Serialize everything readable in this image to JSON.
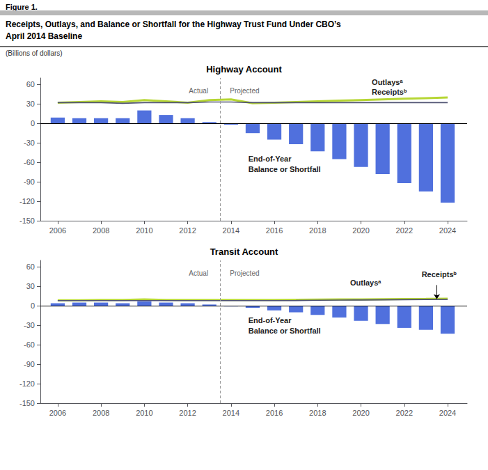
{
  "title": "Receipts, Outlays, and Balance or Shortfall for the Highway Trust Fund Under CBO’s\nApril 2014 Baseline",
  "subtitle": "(Billions of dollars)",
  "annotations": [
    {
      "text": "Figure 1."
    }
  ],
  "chart_data": [
    {
      "type": "bar",
      "title": "Highway Account",
      "x": [
        2006,
        2007,
        2008,
        2009,
        2010,
        2011,
        2012,
        2013,
        2014,
        2015,
        2016,
        2017,
        2018,
        2019,
        2020,
        2021,
        2022,
        2023,
        2024
      ],
      "series": [
        {
          "name": "End-of-Year\nBalance or Shortfall",
          "type": "bar",
          "values": [
            9,
            8,
            8,
            8,
            20,
            13,
            8,
            2,
            -2,
            -15,
            -25,
            -32,
            -43,
            -55,
            -67,
            -78,
            -92,
            -105,
            -122
          ],
          "label_at": [
            2014.8,
            -62
          ]
        },
        {
          "name": "Outlaysᵃ",
          "type": "line",
          "values": [
            32,
            33,
            34,
            33,
            36,
            34,
            32,
            36,
            37,
            31,
            32,
            33,
            34,
            35,
            36,
            37,
            38,
            39,
            40
          ],
          "label_at": [
            2020.5,
            56
          ]
        },
        {
          "name": "Receiptsᵇ",
          "type": "line",
          "values": [
            32,
            32,
            32,
            31,
            32,
            32,
            32,
            33,
            33,
            32,
            32,
            32,
            32,
            32,
            32,
            32,
            32,
            32,
            32
          ],
          "label_at": [
            2020.5,
            40
          ]
        }
      ],
      "xlim": [
        2005.2,
        2024.9
      ],
      "xticks": [
        2006,
        2008,
        2010,
        2012,
        2014,
        2016,
        2018,
        2020,
        2022,
        2024
      ],
      "ylim": [
        -150,
        70
      ],
      "yticks": [
        -150,
        -120,
        -90,
        -60,
        -30,
        0,
        30,
        60
      ],
      "divider": 2013.5,
      "reference_y": 0,
      "annotations": [
        {
          "text": "Actual",
          "x": 2012.95,
          "y": 55.3
        },
        {
          "text": "Projected",
          "x": 2013.95,
          "y": 55.3
        }
      ],
      "grid": false
    },
    {
      "type": "bar",
      "title": "Transit Account",
      "x": [
        2006,
        2007,
        2008,
        2009,
        2010,
        2011,
        2012,
        2013,
        2014,
        2015,
        2016,
        2017,
        2018,
        2019,
        2020,
        2021,
        2022,
        2023,
        2024
      ],
      "series": [
        {
          "name": "End-of-Year\nBalance or Shortfall",
          "type": "bar",
          "values": [
            4,
            5,
            5,
            4,
            7,
            5,
            4,
            2,
            -1,
            -3,
            -7,
            -10,
            -14,
            -18,
            -23,
            -28,
            -34,
            -37,
            -43
          ],
          "label_at": [
            2014.8,
            -30
          ]
        },
        {
          "name": "Outlaysᵃ",
          "type": "line",
          "values": [
            8.5,
            8.5,
            9.0,
            9.0,
            10.0,
            9.0,
            9.0,
            9.0,
            9.0,
            9.0,
            9.2,
            9.4,
            9.6,
            9.8,
            10.0,
            10.2,
            10.4,
            10.6,
            11.0
          ],
          "label_at": [
            2019.5,
            28
          ]
        },
        {
          "name": "Receiptsᵇ",
          "type": "line",
          "values": [
            8.0,
            8.0,
            8.0,
            8.0,
            8.0,
            8.0,
            8.0,
            8.0,
            8.0,
            8.0,
            8.0,
            8.2,
            8.5,
            8.8,
            9.0,
            9.2,
            9.5,
            9.8,
            10.0
          ],
          "label_at": [
            2022.8,
            40
          ],
          "arrow": {
            "from": [
              2023.5,
              32
            ],
            "to": [
              2023.5,
              10.5
            ]
          }
        }
      ],
      "xlim": [
        2005.2,
        2024.9
      ],
      "xticks": [
        2006,
        2008,
        2010,
        2012,
        2014,
        2016,
        2018,
        2020,
        2022,
        2024
      ],
      "ylim": [
        -150,
        70
      ],
      "yticks": [
        -150,
        -120,
        -90,
        -60,
        -30,
        0,
        30,
        60
      ],
      "divider": 2013.5,
      "reference_y": 0,
      "annotations": [
        {
          "text": "Actual",
          "x": 2012.95,
          "y": 55.3
        },
        {
          "text": "Projected",
          "x": 2013.95,
          "y": 55.3
        }
      ],
      "grid": false
    }
  ]
}
